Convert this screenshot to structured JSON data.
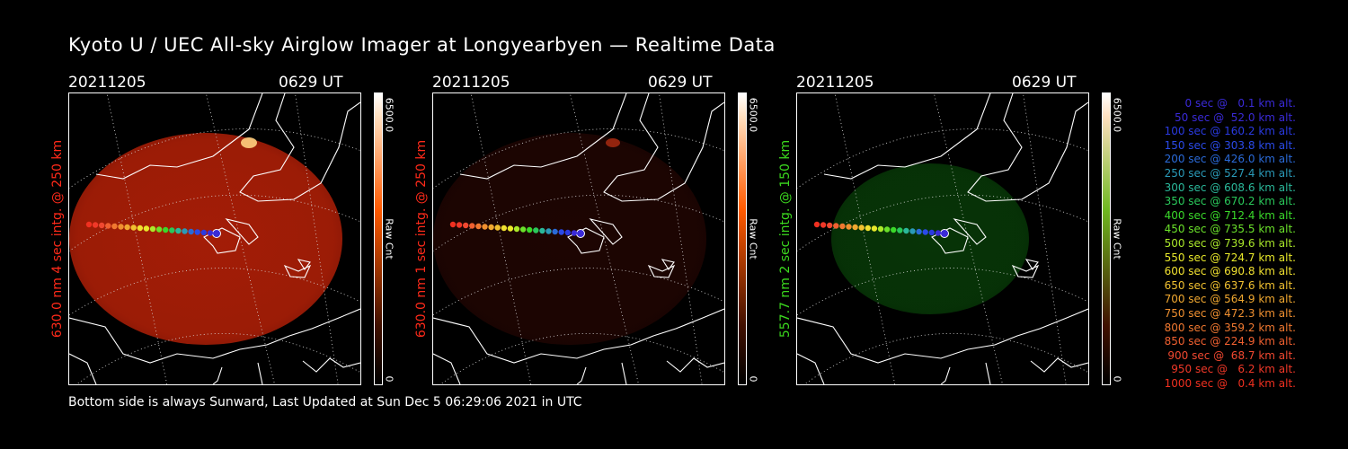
{
  "title": "Kyoto U / UEC All-sky Airglow Imager at Longyearbyen — Realtime Data",
  "footer": "Bottom side is always Sunward, Last Updated at Sun Dec  5 06:29:06 2021 in UTC",
  "panels": [
    {
      "date": "20211205",
      "time": "0629 UT",
      "ylabel": "630.0 nm 4 sec intg. @ 250 km",
      "label_color": "#ff2a1a",
      "cbar_max": "6500.0",
      "cbar_min": "0",
      "cbar_unit": "Raw Cnt",
      "cbar_color": "#ff5a00",
      "sky_color": "#c02208",
      "sky_brightness": 0.85
    },
    {
      "date": "20211205",
      "time": "0629 UT",
      "ylabel": "630.0 nm 1 sec intg. @ 250 km",
      "label_color": "#ff2a1a",
      "cbar_max": "6500.0",
      "cbar_min": "0",
      "cbar_unit": "Raw Cnt",
      "cbar_color": "#ff5a00",
      "sky_color": "#3a0a04",
      "sky_brightness": 0.5
    },
    {
      "date": "20211205",
      "time": "0629 UT",
      "ylabel": "557.7 nm 2 sec intg. @ 150 km",
      "label_color": "#3bd81e",
      "cbar_max": "6500.0",
      "cbar_min": "0",
      "cbar_unit": "Raw Cnt",
      "cbar_color": "#6fb820",
      "sky_color": "#0a4a0a",
      "sky_brightness": 0.7
    }
  ],
  "legend": [
    {
      "text": "   0 sec @   0.1 km alt.",
      "color": "#3a2ad8"
    },
    {
      "text": "  50 sec @  52.0 km alt.",
      "color": "#3a2ad8"
    },
    {
      "text": " 100 sec @ 160.2 km alt.",
      "color": "#2a3ae0"
    },
    {
      "text": " 150 sec @ 303.8 km alt.",
      "color": "#2a4ae8"
    },
    {
      "text": " 200 sec @ 426.0 km alt.",
      "color": "#2a6ad8"
    },
    {
      "text": " 250 sec @ 527.4 km alt.",
      "color": "#2a9ab8"
    },
    {
      "text": " 300 sec @ 608.6 km alt.",
      "color": "#2ab89a"
    },
    {
      "text": " 350 sec @ 670.2 km alt.",
      "color": "#2ac85a"
    },
    {
      "text": " 400 sec @ 712.4 km alt.",
      "color": "#3ad82a"
    },
    {
      "text": " 450 sec @ 735.5 km alt.",
      "color": "#6ae02a"
    },
    {
      "text": " 500 sec @ 739.6 km alt.",
      "color": "#aae82a"
    },
    {
      "text": " 550 sec @ 724.7 km alt.",
      "color": "#e8e82a"
    },
    {
      "text": " 600 sec @ 690.8 km alt.",
      "color": "#f0e030"
    },
    {
      "text": " 650 sec @ 637.6 km alt.",
      "color": "#f0c030"
    },
    {
      "text": " 700 sec @ 564.9 km alt.",
      "color": "#f0a830"
    },
    {
      "text": " 750 sec @ 472.3 km alt.",
      "color": "#f09030"
    },
    {
      "text": " 800 sec @ 359.2 km alt.",
      "color": "#f07830"
    },
    {
      "text": " 850 sec @ 224.9 km alt.",
      "color": "#f06030"
    },
    {
      "text": " 900 sec @  68.7 km alt.",
      "color": "#f04830"
    },
    {
      "text": " 950 sec @   6.2 km alt.",
      "color": "#f03828"
    },
    {
      "text": "1000 sec @   0.4 km alt.",
      "color": "#f03020"
    }
  ]
}
